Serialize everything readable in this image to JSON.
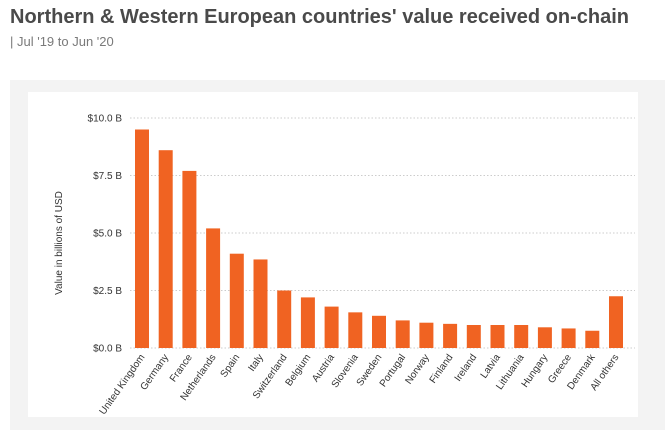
{
  "header": {
    "title": "Northern & Western European countries' value received on-chain",
    "subtitle": "| Jul '19 to Jun '20"
  },
  "colors": {
    "bar": "#f06322",
    "gridline": "#cccccc"
  },
  "chart_data": {
    "type": "bar",
    "title": "Northern & Western European countries' value received on-chain",
    "subtitle": "| Jul '19 to Jun '20",
    "xlabel": "",
    "ylabel": "Value in billions of USD",
    "ylim": [
      0,
      10
    ],
    "yticks": [
      0,
      2.5,
      5,
      7.5,
      10
    ],
    "ytick_labels": [
      "$0.0 B",
      "$2.5 B",
      "$5.0 B",
      "$7.5 B",
      "$10.0 B"
    ],
    "grid": "horizontal",
    "categories": [
      "United Kingdom",
      "Germany",
      "France",
      "Netherlands",
      "Spain",
      "Italy",
      "Switzerland",
      "Belgium",
      "Austria",
      "Slovenia",
      "Sweden",
      "Portugal",
      "Norway",
      "Finland",
      "Ireland",
      "Latvia",
      "Lithuania",
      "Hungary",
      "Greece",
      "Denmark",
      "All others"
    ],
    "values": [
      9.5,
      8.6,
      7.7,
      5.2,
      4.1,
      3.85,
      2.5,
      2.2,
      1.8,
      1.55,
      1.4,
      1.2,
      1.1,
      1.05,
      1.0,
      1.0,
      1.0,
      0.9,
      0.85,
      0.75,
      2.25
    ]
  }
}
